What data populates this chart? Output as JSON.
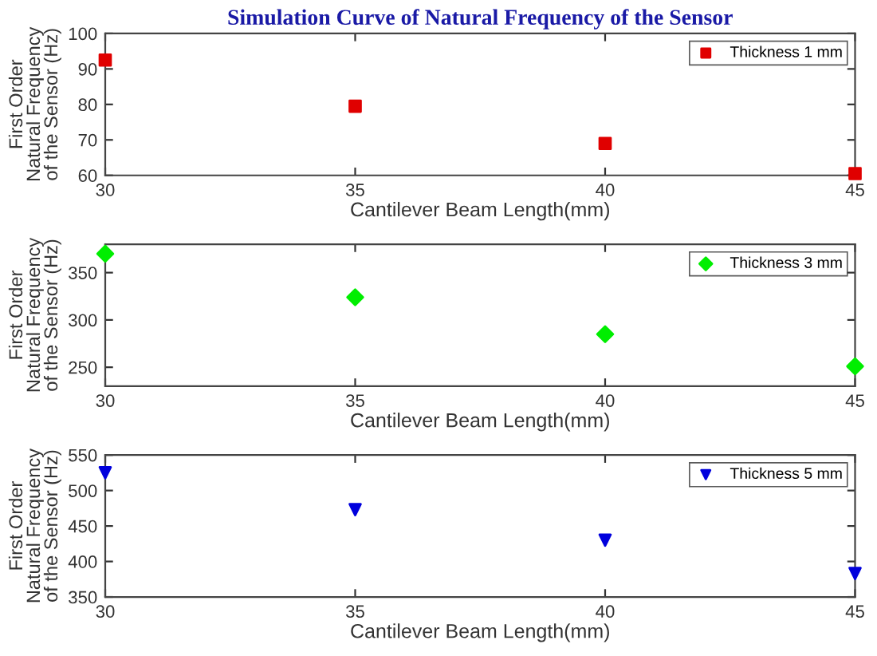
{
  "chart_data": [
    {
      "type": "scatter",
      "title": "Simulation Curve of Natural Frequency of the Sensor",
      "xlabel": "Cantilever Beam Length(mm)",
      "ylabel": "First Order\nNatural Frequency\nof the Sensor (Hz)",
      "x": [
        30,
        35,
        40,
        45
      ],
      "xlim": [
        30,
        45
      ],
      "xticks": [
        30,
        35,
        40,
        45
      ],
      "ylim": [
        60,
        100
      ],
      "yticks": [
        60,
        70,
        80,
        90,
        100
      ],
      "marker": "square",
      "legend": "top right",
      "series": [
        {
          "name": "Thickness 1 mm",
          "color": "#e00000",
          "values": [
            92.5,
            79.5,
            69,
            60.5
          ]
        }
      ]
    },
    {
      "type": "scatter",
      "xlabel": "Cantilever Beam Length(mm)",
      "ylabel": "First Order\nNatural Frequency\nof the Sensor (Hz)",
      "x": [
        30,
        35,
        40,
        45
      ],
      "xlim": [
        30,
        45
      ],
      "xticks": [
        30,
        35,
        40,
        45
      ],
      "ylim": [
        230,
        380
      ],
      "yticks": [
        250,
        300,
        350
      ],
      "marker": "diamond",
      "legend": "top right",
      "series": [
        {
          "name": "Thickness 3 mm",
          "color": "#00ee00",
          "values": [
            370,
            324,
            285,
            251
          ]
        }
      ]
    },
    {
      "type": "scatter",
      "xlabel": "Cantilever Beam Length(mm)",
      "ylabel": "First Order\nNatural Frequency\nof the Sensor (Hz)",
      "x": [
        30,
        35,
        40,
        45
      ],
      "xlim": [
        30,
        45
      ],
      "xticks": [
        30,
        35,
        40,
        45
      ],
      "ylim": [
        350,
        550
      ],
      "yticks": [
        350,
        400,
        450,
        500,
        550
      ],
      "marker": "triangle",
      "legend": "top right",
      "series": [
        {
          "name": "Thickness 5 mm",
          "color": "#0000dd",
          "values": [
            525,
            473,
            430,
            383
          ]
        }
      ]
    }
  ]
}
